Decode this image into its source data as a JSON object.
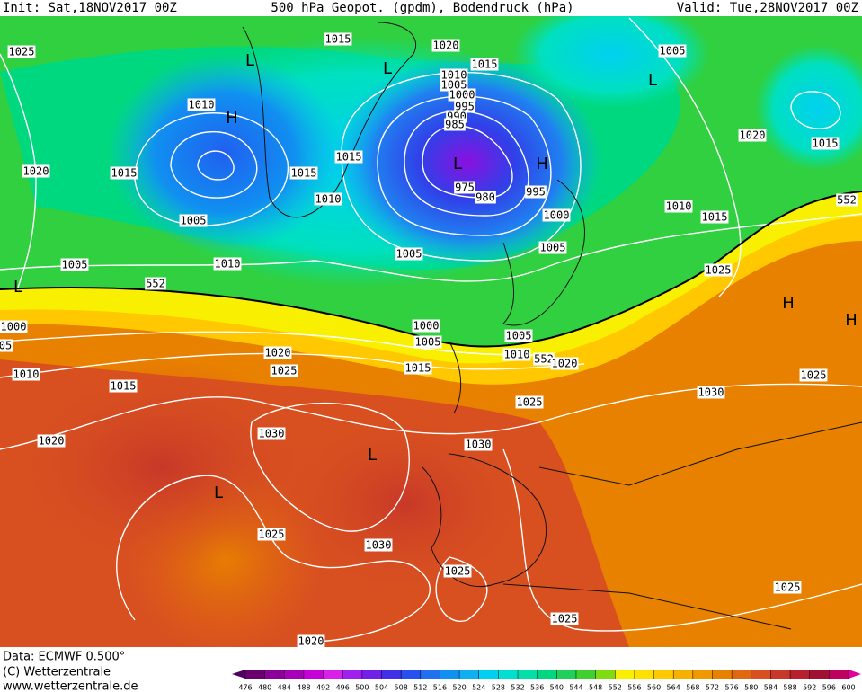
{
  "header": {
    "init": "Init: Sat,18NOV2017 00Z",
    "title": "500 hPa Geopot. (gpdm), Bodendruck (hPa)",
    "valid": "Valid: Tue,28NOV2017 00Z"
  },
  "isobar_labels": [
    "1025",
    "1015",
    "1020",
    "1015",
    "1005",
    "1010",
    "1005",
    "1000",
    "995",
    "990",
    "985",
    "1010",
    "1020",
    "1015",
    "1015",
    "1015",
    "975",
    "980",
    "995",
    "1010",
    "1005",
    "1000",
    "1010",
    "1015",
    "1020",
    "1015",
    "1005",
    "1010",
    "1005",
    "1005",
    "1025",
    "552",
    "552",
    "1000",
    "1000",
    "1005",
    "1005",
    "1010",
    "552",
    "1020",
    "05",
    "1020",
    "1025",
    "1010",
    "1015",
    "1015",
    "1025",
    "1030",
    "1025",
    "1030",
    "1030",
    "1020",
    "1025",
    "1030",
    "1025",
    "1025",
    "1025",
    "1020"
  ],
  "pressure_centers": [
    "H",
    "L",
    "L",
    "L",
    "H",
    "L",
    "L",
    "H",
    "H",
    "L",
    "L"
  ],
  "colorbar": {
    "ticks": [
      476,
      480,
      484,
      488,
      492,
      496,
      500,
      504,
      508,
      512,
      516,
      520,
      524,
      528,
      532,
      536,
      540,
      544,
      548,
      552,
      556,
      560,
      564,
      568,
      572,
      576,
      580,
      584,
      588,
      592,
      596,
      600
    ],
    "colors": [
      "#6a0070",
      "#8a0098",
      "#a800b8",
      "#c800d8",
      "#d820e8",
      "#a020f0",
      "#7020e8",
      "#4030e8",
      "#2850f0",
      "#2070f0",
      "#1090f0",
      "#10b0f0",
      "#00d0f0",
      "#00e0d0",
      "#00e0a8",
      "#00d880",
      "#20d058",
      "#40d030",
      "#80dc10",
      "#f8f000",
      "#ffe000",
      "#ffc800",
      "#f8b000",
      "#f09800",
      "#e88000",
      "#e06810",
      "#d85020",
      "#c83828",
      "#b82030",
      "#a01030",
      "#c00060"
    ],
    "low_color": "#500060",
    "high_color": "#e000a0"
  },
  "footer": {
    "data": "Data: ECMWF  0.500°",
    "copyright": "(C) Wetterzentrale",
    "url": "www.wetterzentrale.de"
  }
}
